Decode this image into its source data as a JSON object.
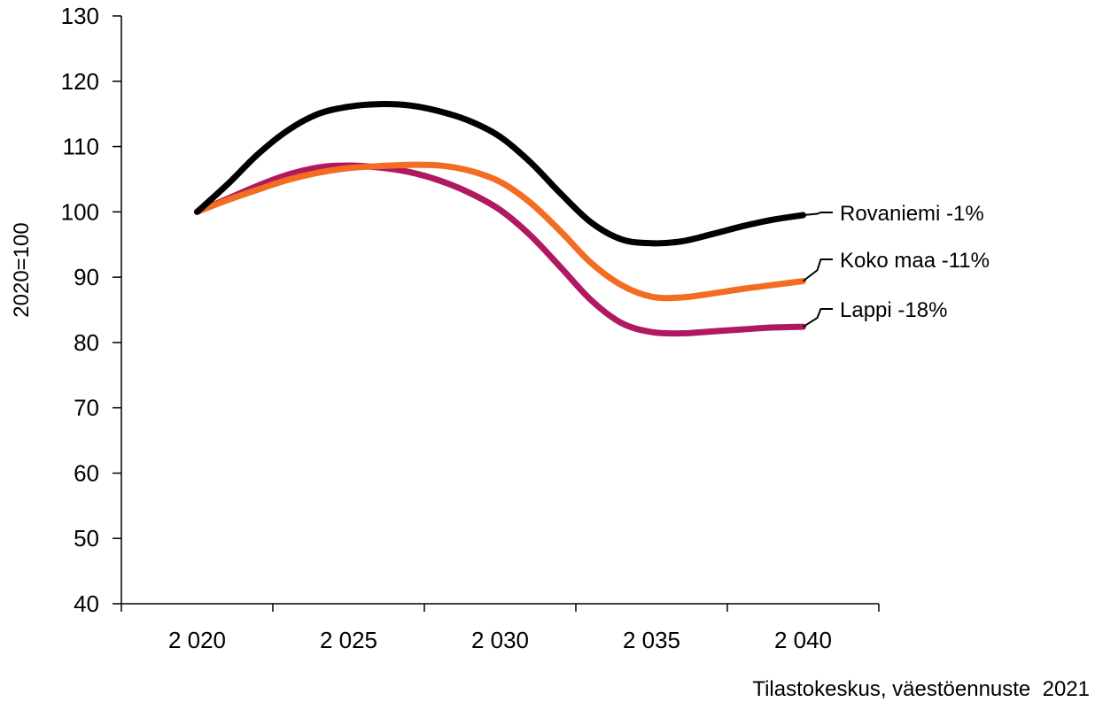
{
  "chart_data": {
    "type": "line",
    "title": "",
    "ylabel": "2020=100",
    "xlabel": "",
    "source": "Tilastokeskus, väestöennuste  2021",
    "x": [
      2020,
      2021,
      2022,
      2023,
      2024,
      2025,
      2026,
      2027,
      2028,
      2029,
      2030,
      2031,
      2032,
      2033,
      2034,
      2035,
      2036,
      2037,
      2038,
      2039,
      2040
    ],
    "x_ticks": [
      2020,
      2025,
      2030,
      2035,
      2040
    ],
    "x_tick_labels": [
      "2 020",
      "2 025",
      "2 030",
      "2 035",
      "2 040"
    ],
    "xlim": [
      2017.5,
      2042.5
    ],
    "ylim": [
      40,
      130
    ],
    "y_ticks": [
      40,
      50,
      60,
      70,
      80,
      90,
      100,
      110,
      120,
      130
    ],
    "grid": false,
    "legend": "inline-right",
    "series": [
      {
        "name": "Rovaniemi -1%",
        "color": "#000000",
        "values": [
          100,
          104.2,
          108.8,
          112.5,
          115.0,
          116.1,
          116.5,
          116.3,
          115.4,
          113.9,
          111.5,
          107.6,
          102.8,
          98.4,
          95.8,
          95.2,
          95.5,
          96.6,
          97.8,
          98.8,
          99.5
        ]
      },
      {
        "name": "Koko maa -11%",
        "color": "#f26c21",
        "values": [
          100,
          101.8,
          103.4,
          104.9,
          106.0,
          106.7,
          107.0,
          107.2,
          107.1,
          106.3,
          104.6,
          101.4,
          97.0,
          92.2,
          88.8,
          87.0,
          86.9,
          87.5,
          88.2,
          88.8,
          89.4
        ]
      },
      {
        "name": "Lappi -18%",
        "color": "#b0195f",
        "values": [
          100,
          102.0,
          104.0,
          105.7,
          106.8,
          107.1,
          106.8,
          106.1,
          104.8,
          102.9,
          100.3,
          96.4,
          91.5,
          86.5,
          83.0,
          81.6,
          81.4,
          81.7,
          82.0,
          82.3,
          82.4
        ]
      }
    ]
  }
}
